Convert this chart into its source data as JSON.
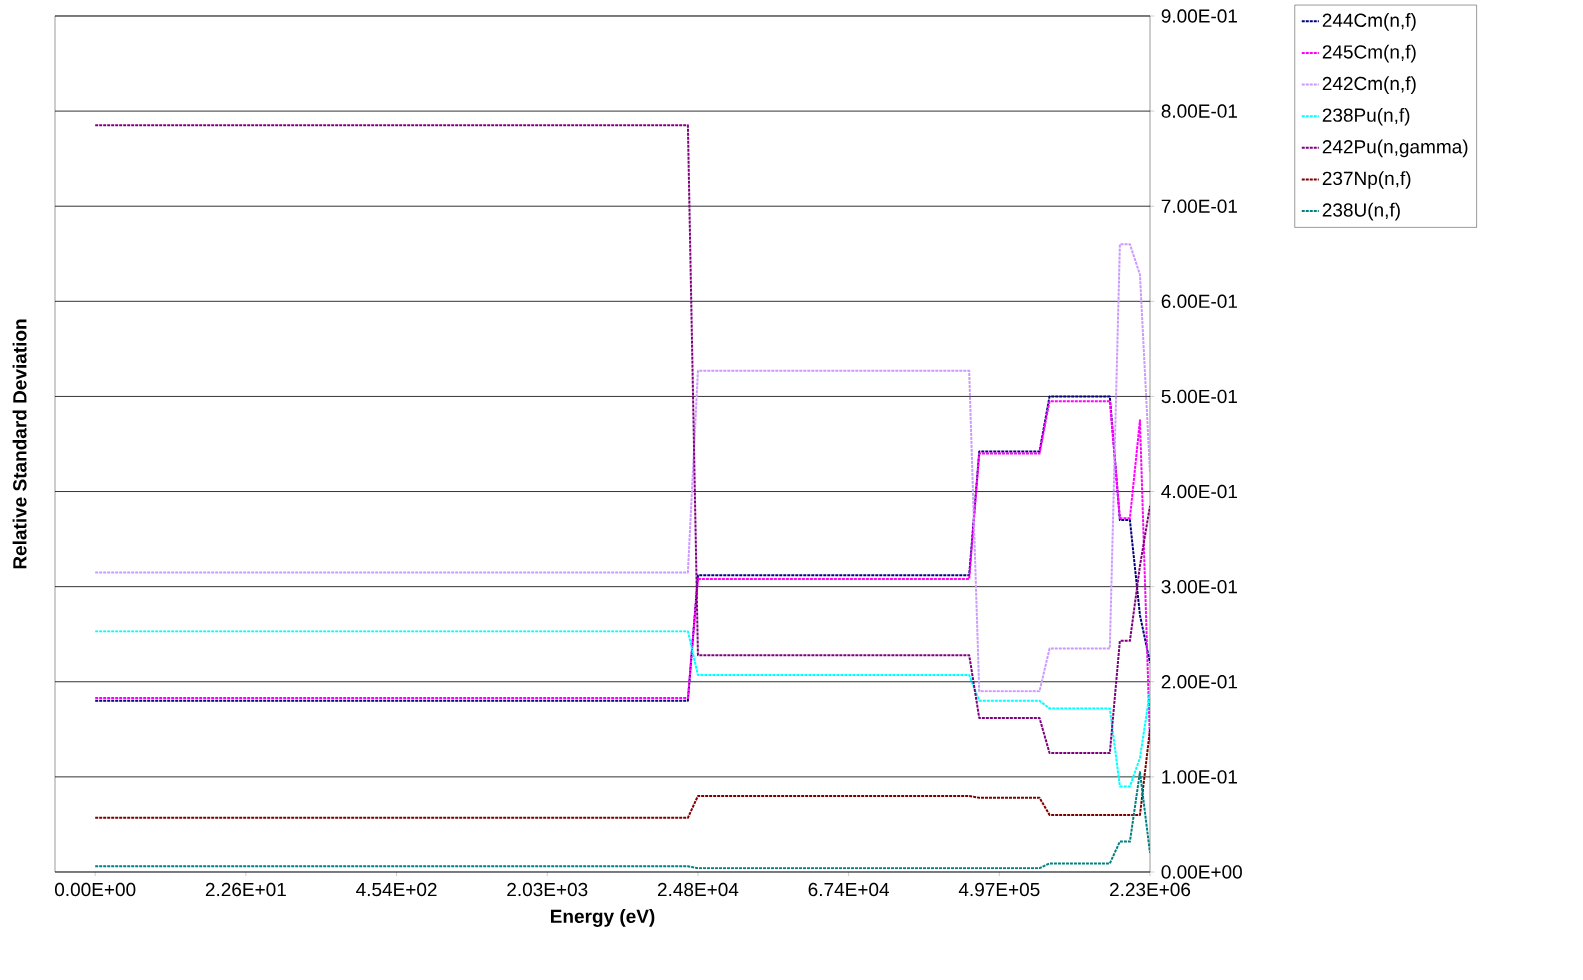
{
  "chart_data": {
    "type": "line",
    "xlabel": "Energy (eV)",
    "ylabel": "Relative Standard Deviation",
    "categories": [
      "0.00E+00",
      null,
      null,
      null,
      null,
      null,
      null,
      null,
      null,
      null,
      null,
      null,
      null,
      null,
      null,
      "2.26E+01",
      null,
      null,
      null,
      null,
      null,
      null,
      null,
      null,
      null,
      null,
      null,
      null,
      null,
      null,
      "4.54E+02",
      null,
      null,
      null,
      null,
      null,
      null,
      null,
      null,
      null,
      null,
      null,
      null,
      null,
      null,
      "2.03E+03",
      null,
      null,
      null,
      null,
      null,
      null,
      null,
      null,
      null,
      null,
      null,
      null,
      null,
      null,
      "2.48E+04",
      null,
      null,
      null,
      null,
      null,
      null,
      null,
      null,
      null,
      null,
      null,
      null,
      null,
      null,
      "6.74E+04",
      null,
      null,
      null,
      null,
      null,
      null,
      null,
      null,
      null,
      null,
      null,
      null,
      null,
      null,
      "4.97E+05",
      null,
      null,
      null,
      null,
      null,
      null,
      null,
      null,
      null,
      null,
      null,
      null,
      null,
      null,
      "2.23E+06"
    ],
    "series": [
      {
        "name": "244Cm(n,f)",
        "color": "#000080",
        "values": [
          0.18,
          0.18,
          0.18,
          0.18,
          0.18,
          0.18,
          0.18,
          0.18,
          0.18,
          0.18,
          0.18,
          0.18,
          0.18,
          0.18,
          0.18,
          0.18,
          0.18,
          0.18,
          0.18,
          0.18,
          0.18,
          0.18,
          0.18,
          0.18,
          0.18,
          0.18,
          0.18,
          0.18,
          0.18,
          0.18,
          0.18,
          0.18,
          0.18,
          0.18,
          0.18,
          0.18,
          0.18,
          0.18,
          0.18,
          0.18,
          0.18,
          0.18,
          0.18,
          0.18,
          0.18,
          0.18,
          0.18,
          0.18,
          0.18,
          0.18,
          0.18,
          0.18,
          0.18,
          0.18,
          0.18,
          0.18,
          0.18,
          0.18,
          0.18,
          0.18,
          0.312,
          0.312,
          0.312,
          0.312,
          0.312,
          0.312,
          0.312,
          0.312,
          0.312,
          0.312,
          0.312,
          0.312,
          0.312,
          0.312,
          0.312,
          0.312,
          0.312,
          0.312,
          0.312,
          0.312,
          0.312,
          0.312,
          0.312,
          0.312,
          0.312,
          0.312,
          0.312,
          0.312,
          0.442,
          0.442,
          0.442,
          0.442,
          0.442,
          0.442,
          0.442,
          0.5,
          0.5,
          0.5,
          0.5,
          0.5,
          0.5,
          0.5,
          0.37,
          0.37,
          0.27,
          0.22
        ]
      },
      {
        "name": "245Cm(n,f)",
        "color": "#ff00ff",
        "values": [
          0.183,
          0.183,
          0.183,
          0.183,
          0.183,
          0.183,
          0.183,
          0.183,
          0.183,
          0.183,
          0.183,
          0.183,
          0.183,
          0.183,
          0.183,
          0.183,
          0.183,
          0.183,
          0.183,
          0.183,
          0.183,
          0.183,
          0.183,
          0.183,
          0.183,
          0.183,
          0.183,
          0.183,
          0.183,
          0.183,
          0.183,
          0.183,
          0.183,
          0.183,
          0.183,
          0.183,
          0.183,
          0.183,
          0.183,
          0.183,
          0.183,
          0.183,
          0.183,
          0.183,
          0.183,
          0.183,
          0.183,
          0.183,
          0.183,
          0.183,
          0.183,
          0.183,
          0.183,
          0.183,
          0.183,
          0.183,
          0.183,
          0.183,
          0.183,
          0.183,
          0.308,
          0.308,
          0.308,
          0.308,
          0.308,
          0.308,
          0.308,
          0.308,
          0.308,
          0.308,
          0.308,
          0.308,
          0.308,
          0.308,
          0.308,
          0.308,
          0.308,
          0.308,
          0.308,
          0.308,
          0.308,
          0.308,
          0.308,
          0.308,
          0.308,
          0.308,
          0.308,
          0.308,
          0.44,
          0.44,
          0.44,
          0.44,
          0.44,
          0.44,
          0.44,
          0.495,
          0.495,
          0.495,
          0.495,
          0.495,
          0.495,
          0.495,
          0.372,
          0.372,
          0.475,
          0.135
        ]
      },
      {
        "name": "242Cm(n,f)",
        "color": "#cc99ff",
        "values": [
          0.315,
          0.315,
          0.315,
          0.315,
          0.315,
          0.315,
          0.315,
          0.315,
          0.315,
          0.315,
          0.315,
          0.315,
          0.315,
          0.315,
          0.315,
          0.315,
          0.315,
          0.315,
          0.315,
          0.315,
          0.315,
          0.315,
          0.315,
          0.315,
          0.315,
          0.315,
          0.315,
          0.315,
          0.315,
          0.315,
          0.315,
          0.315,
          0.315,
          0.315,
          0.315,
          0.315,
          0.315,
          0.315,
          0.315,
          0.315,
          0.315,
          0.315,
          0.315,
          0.315,
          0.315,
          0.315,
          0.315,
          0.315,
          0.315,
          0.315,
          0.315,
          0.315,
          0.315,
          0.315,
          0.315,
          0.315,
          0.315,
          0.315,
          0.315,
          0.315,
          0.527,
          0.527,
          0.527,
          0.527,
          0.527,
          0.527,
          0.527,
          0.527,
          0.527,
          0.527,
          0.527,
          0.527,
          0.527,
          0.527,
          0.527,
          0.527,
          0.527,
          0.527,
          0.527,
          0.527,
          0.527,
          0.527,
          0.527,
          0.527,
          0.527,
          0.527,
          0.527,
          0.527,
          0.19,
          0.19,
          0.19,
          0.19,
          0.19,
          0.19,
          0.19,
          0.235,
          0.235,
          0.235,
          0.235,
          0.235,
          0.235,
          0.235,
          0.66,
          0.66,
          0.628,
          0.42
        ]
      },
      {
        "name": "238Pu(n,f)",
        "color": "#00ffff",
        "values": [
          0.253,
          0.253,
          0.253,
          0.253,
          0.253,
          0.253,
          0.253,
          0.253,
          0.253,
          0.253,
          0.253,
          0.253,
          0.253,
          0.253,
          0.253,
          0.253,
          0.253,
          0.253,
          0.253,
          0.253,
          0.253,
          0.253,
          0.253,
          0.253,
          0.253,
          0.253,
          0.253,
          0.253,
          0.253,
          0.253,
          0.253,
          0.253,
          0.253,
          0.253,
          0.253,
          0.253,
          0.253,
          0.253,
          0.253,
          0.253,
          0.253,
          0.253,
          0.253,
          0.253,
          0.253,
          0.253,
          0.253,
          0.253,
          0.253,
          0.253,
          0.253,
          0.253,
          0.253,
          0.253,
          0.253,
          0.253,
          0.253,
          0.253,
          0.253,
          0.253,
          0.207,
          0.207,
          0.207,
          0.207,
          0.207,
          0.207,
          0.207,
          0.207,
          0.207,
          0.207,
          0.207,
          0.207,
          0.207,
          0.207,
          0.207,
          0.207,
          0.207,
          0.207,
          0.207,
          0.207,
          0.207,
          0.207,
          0.207,
          0.207,
          0.207,
          0.207,
          0.207,
          0.207,
          0.18,
          0.18,
          0.18,
          0.18,
          0.18,
          0.18,
          0.18,
          0.172,
          0.172,
          0.172,
          0.172,
          0.172,
          0.172,
          0.172,
          0.09,
          0.09,
          0.12,
          0.19
        ]
      },
      {
        "name": "242Pu(n,gamma)",
        "color": "#800080",
        "values": [
          0.785,
          0.785,
          0.785,
          0.785,
          0.785,
          0.785,
          0.785,
          0.785,
          0.785,
          0.785,
          0.785,
          0.785,
          0.785,
          0.785,
          0.785,
          0.785,
          0.785,
          0.785,
          0.785,
          0.785,
          0.785,
          0.785,
          0.785,
          0.785,
          0.785,
          0.785,
          0.785,
          0.785,
          0.785,
          0.785,
          0.785,
          0.785,
          0.785,
          0.785,
          0.785,
          0.785,
          0.785,
          0.785,
          0.785,
          0.785,
          0.785,
          0.785,
          0.785,
          0.785,
          0.785,
          0.785,
          0.785,
          0.785,
          0.785,
          0.785,
          0.785,
          0.785,
          0.785,
          0.785,
          0.785,
          0.785,
          0.785,
          0.785,
          0.785,
          0.785,
          0.228,
          0.228,
          0.228,
          0.228,
          0.228,
          0.228,
          0.228,
          0.228,
          0.228,
          0.228,
          0.228,
          0.228,
          0.228,
          0.228,
          0.228,
          0.228,
          0.228,
          0.228,
          0.228,
          0.228,
          0.228,
          0.228,
          0.228,
          0.228,
          0.228,
          0.228,
          0.228,
          0.228,
          0.162,
          0.162,
          0.162,
          0.162,
          0.162,
          0.162,
          0.162,
          0.125,
          0.125,
          0.125,
          0.125,
          0.125,
          0.125,
          0.125,
          0.243,
          0.243,
          0.322,
          0.385
        ]
      },
      {
        "name": "237Np(n,f)",
        "color": "#800000",
        "values": [
          0.057,
          0.057,
          0.057,
          0.057,
          0.057,
          0.057,
          0.057,
          0.057,
          0.057,
          0.057,
          0.057,
          0.057,
          0.057,
          0.057,
          0.057,
          0.057,
          0.057,
          0.057,
          0.057,
          0.057,
          0.057,
          0.057,
          0.057,
          0.057,
          0.057,
          0.057,
          0.057,
          0.057,
          0.057,
          0.057,
          0.057,
          0.057,
          0.057,
          0.057,
          0.057,
          0.057,
          0.057,
          0.057,
          0.057,
          0.057,
          0.057,
          0.057,
          0.057,
          0.057,
          0.057,
          0.057,
          0.057,
          0.057,
          0.057,
          0.057,
          0.057,
          0.057,
          0.057,
          0.057,
          0.057,
          0.057,
          0.057,
          0.057,
          0.057,
          0.057,
          0.08,
          0.08,
          0.08,
          0.08,
          0.08,
          0.08,
          0.08,
          0.08,
          0.08,
          0.08,
          0.08,
          0.08,
          0.08,
          0.08,
          0.08,
          0.08,
          0.08,
          0.08,
          0.08,
          0.08,
          0.08,
          0.08,
          0.08,
          0.08,
          0.08,
          0.08,
          0.08,
          0.08,
          0.078,
          0.078,
          0.078,
          0.078,
          0.078,
          0.078,
          0.078,
          0.06,
          0.06,
          0.06,
          0.06,
          0.06,
          0.06,
          0.06,
          0.06,
          0.06,
          0.06,
          0.15
        ]
      },
      {
        "name": "238U(n,f)",
        "color": "#008080",
        "values": [
          0.006,
          0.006,
          0.006,
          0.006,
          0.006,
          0.006,
          0.006,
          0.006,
          0.006,
          0.006,
          0.006,
          0.006,
          0.006,
          0.006,
          0.006,
          0.006,
          0.006,
          0.006,
          0.006,
          0.006,
          0.006,
          0.006,
          0.006,
          0.006,
          0.006,
          0.006,
          0.006,
          0.006,
          0.006,
          0.006,
          0.006,
          0.006,
          0.006,
          0.006,
          0.006,
          0.006,
          0.006,
          0.006,
          0.006,
          0.006,
          0.006,
          0.006,
          0.006,
          0.006,
          0.006,
          0.006,
          0.006,
          0.006,
          0.006,
          0.006,
          0.006,
          0.006,
          0.006,
          0.006,
          0.006,
          0.006,
          0.006,
          0.006,
          0.006,
          0.006,
          0.004,
          0.004,
          0.004,
          0.004,
          0.004,
          0.004,
          0.004,
          0.004,
          0.004,
          0.004,
          0.004,
          0.004,
          0.004,
          0.004,
          0.004,
          0.004,
          0.004,
          0.004,
          0.004,
          0.004,
          0.004,
          0.004,
          0.004,
          0.004,
          0.004,
          0.004,
          0.004,
          0.004,
          0.004,
          0.004,
          0.004,
          0.004,
          0.004,
          0.004,
          0.004,
          0.009,
          0.009,
          0.009,
          0.009,
          0.009,
          0.009,
          0.009,
          0.032,
          0.032,
          0.105,
          0.02
        ]
      }
    ],
    "ylim": [
      0,
      0.9
    ],
    "yticks": [
      {
        "value": 0,
        "label": "0.00E+00"
      },
      {
        "value": 0.1,
        "label": "1.00E-01"
      },
      {
        "value": 0.2,
        "label": "2.00E-01"
      },
      {
        "value": 0.3,
        "label": "3.00E-01"
      },
      {
        "value": 0.4,
        "label": "4.00E-01"
      },
      {
        "value": 0.5,
        "label": "5.00E-01"
      },
      {
        "value": 0.6,
        "label": "6.00E-01"
      },
      {
        "value": 0.7,
        "label": "7.00E-01"
      },
      {
        "value": 0.8,
        "label": "8.00E-01"
      },
      {
        "value": 0.9,
        "label": "9.00E-01"
      }
    ],
    "grid": "y",
    "legend": "top right",
    "line_style": "dashed"
  }
}
